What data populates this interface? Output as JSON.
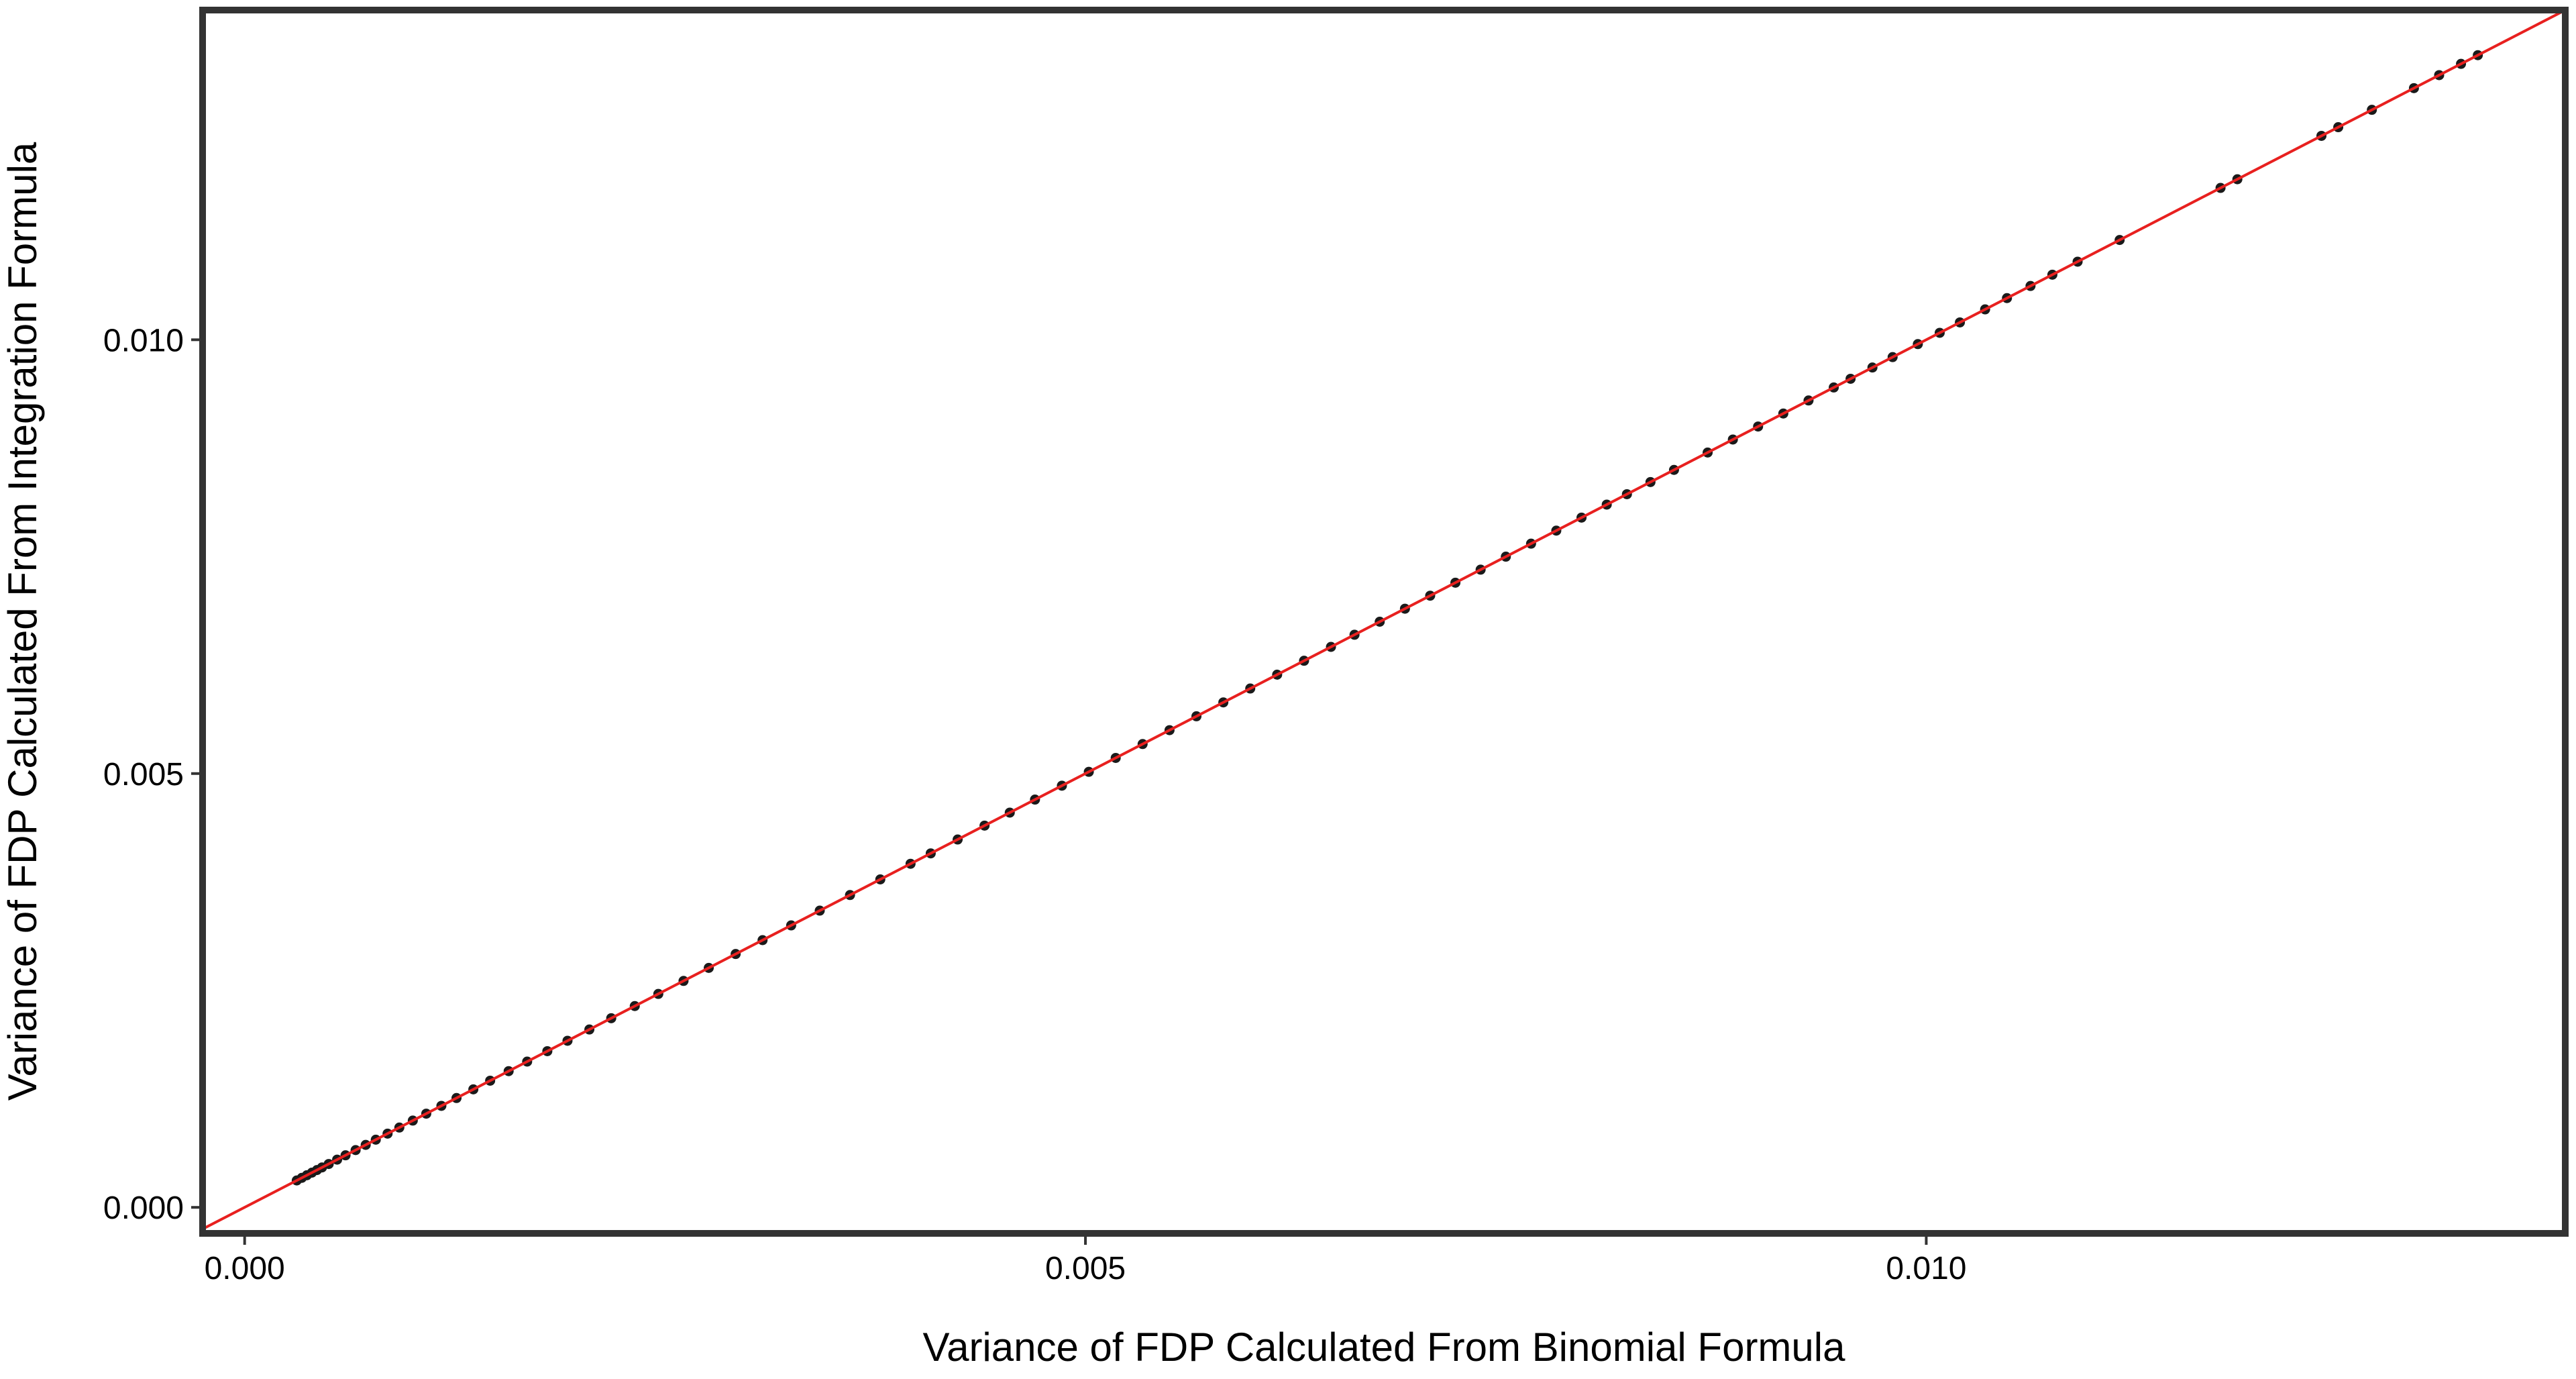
{
  "chart_data": {
    "type": "scatter",
    "title": "",
    "xlabel": "Variance of FDP Calculated From Binomial Formula",
    "ylabel": "Variance of FDP Calculated From Integration Formula",
    "xlim": [
      -0.00025,
      0.0138
    ],
    "ylim": [
      -0.0003,
      0.0138
    ],
    "x_ticks": [
      0.0,
      0.005,
      0.01
    ],
    "x_tick_labels": [
      "0.000",
      "0.005",
      "0.010"
    ],
    "y_ticks": [
      0.0,
      0.005,
      0.01
    ],
    "y_tick_labels": [
      "0.000",
      "0.005",
      "0.010"
    ],
    "grid": false,
    "legend": "none",
    "reference_line": {
      "type": "identity",
      "slope": 1,
      "intercept": 0,
      "color": "#e8201f"
    },
    "point_color": "#1a1a1a",
    "frame_color": "#333333",
    "series": [
      {
        "x": [
          0.00031,
          0.00034,
          0.00037,
          0.0004,
          0.00043,
          0.00046,
          0.0005,
          0.00055,
          0.0006,
          0.00066,
          0.00072,
          0.00078,
          0.00085,
          0.00092,
          0.001,
          0.00108,
          0.00117,
          0.00126,
          0.00136,
          0.00146,
          0.00157,
          0.00168,
          0.0018,
          0.00192,
          0.00205,
          0.00218,
          0.00232,
          0.00246,
          0.00261,
          0.00276,
          0.00292,
          0.00308,
          0.00325,
          0.00342,
          0.0036,
          0.00378,
          0.00396,
          0.00408,
          0.00424,
          0.0044,
          0.00455,
          0.0047,
          0.00486,
          0.00502,
          0.00518,
          0.00534,
          0.0055,
          0.00566,
          0.00582,
          0.00598,
          0.00614,
          0.0063,
          0.00646,
          0.0066,
          0.00675,
          0.0069,
          0.00705,
          0.0072,
          0.00735,
          0.0075,
          0.00765,
          0.0078,
          0.00795,
          0.0081,
          0.00822,
          0.00836,
          0.0085,
          0.0087,
          0.00885,
          0.009,
          0.00915,
          0.0093,
          0.00945,
          0.00955,
          0.00968,
          0.0098,
          0.00995,
          0.01008,
          0.0102,
          0.01035,
          0.01048,
          0.01062,
          0.01075,
          0.0109,
          0.01115,
          0.01175,
          0.01185,
          0.01235,
          0.01245,
          0.01265,
          0.0129,
          0.01305,
          0.01318,
          0.01328
        ],
        "y": [
          0.00031,
          0.00034,
          0.00037,
          0.0004,
          0.00043,
          0.00046,
          0.0005,
          0.00055,
          0.0006,
          0.00066,
          0.00072,
          0.00078,
          0.00085,
          0.00092,
          0.001,
          0.00108,
          0.00117,
          0.00126,
          0.00136,
          0.00146,
          0.00157,
          0.00168,
          0.0018,
          0.00192,
          0.00205,
          0.00218,
          0.00232,
          0.00246,
          0.00261,
          0.00276,
          0.00292,
          0.00308,
          0.00325,
          0.00342,
          0.0036,
          0.00378,
          0.00396,
          0.00408,
          0.00424,
          0.0044,
          0.00455,
          0.0047,
          0.00486,
          0.00502,
          0.00518,
          0.00534,
          0.0055,
          0.00566,
          0.00582,
          0.00598,
          0.00614,
          0.0063,
          0.00646,
          0.0066,
          0.00675,
          0.0069,
          0.00705,
          0.0072,
          0.00735,
          0.0075,
          0.00765,
          0.0078,
          0.00795,
          0.0081,
          0.00822,
          0.00836,
          0.0085,
          0.0087,
          0.00885,
          0.009,
          0.00915,
          0.0093,
          0.00945,
          0.00955,
          0.00968,
          0.0098,
          0.00995,
          0.01008,
          0.0102,
          0.01035,
          0.01048,
          0.01062,
          0.01075,
          0.0109,
          0.01115,
          0.01175,
          0.01185,
          0.01235,
          0.01245,
          0.01265,
          0.0129,
          0.01305,
          0.01318,
          0.01328
        ]
      }
    ]
  }
}
